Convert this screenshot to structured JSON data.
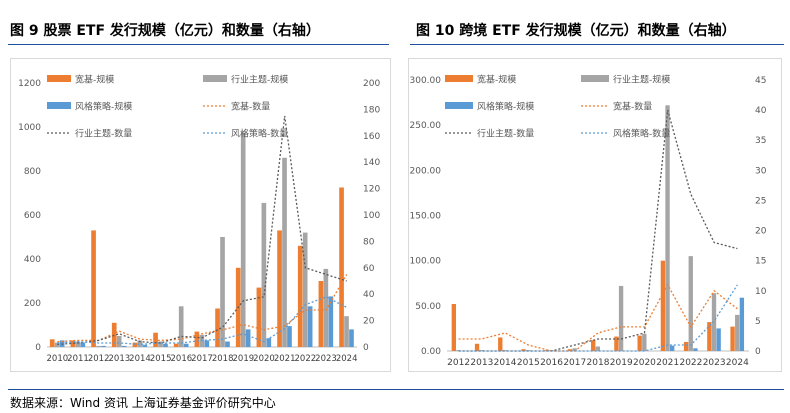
{
  "figures": {
    "left_title": "图 9  股票 ETF 发行规模（亿元）和数量（右轴）",
    "right_title": "图 10  跨境 ETF 发行规模（亿元）和数量（右轴）"
  },
  "source": "数据来源：Wind 资讯  上海证券基金评价研究中心",
  "colors": {
    "broad": "#ed7d31",
    "industry": "#a5a5a5",
    "strategy": "#5b9bd5",
    "industry_count_line": "#595959"
  },
  "chart_data": [
    {
      "type": "bar",
      "title": "图 9  股票 ETF 发行规模（亿元）和数量（右轴）",
      "categories": [
        "2010",
        "2011",
        "2012",
        "2013",
        "2014",
        "2015",
        "2016",
        "2017",
        "2018",
        "2019",
        "2020",
        "2021",
        "2022",
        "2023",
        "2024"
      ],
      "ylim": [
        0,
        1200
      ],
      "yticks": [
        "0",
        "200",
        "400",
        "600",
        "800",
        "1000",
        "1200"
      ],
      "y2lim": [
        0,
        200
      ],
      "y2ticks": [
        "0",
        "20",
        "40",
        "60",
        "80",
        "100",
        "120",
        "140",
        "160",
        "180",
        "200"
      ],
      "legend": [
        "宽基-规模",
        "行业主题-规模",
        "风格策略-规模",
        "宽基-数量",
        "行业主题-数量",
        "风格策略-数量"
      ],
      "bar_series": [
        {
          "name": "宽基-规模",
          "values": [
            35,
            30,
            530,
            110,
            20,
            65,
            15,
            70,
            175,
            360,
            270,
            530,
            460,
            300,
            725
          ]
        },
        {
          "name": "行业主题-规模",
          "values": [
            20,
            25,
            5,
            50,
            30,
            25,
            185,
            55,
            500,
            975,
            655,
            860,
            520,
            355,
            140
          ]
        },
        {
          "name": "风格策略-规模",
          "values": [
            30,
            20,
            5,
            5,
            10,
            15,
            15,
            30,
            25,
            80,
            40,
            95,
            185,
            230,
            80
          ]
        }
      ],
      "line_series": [
        {
          "name": "宽基-数量",
          "values": [
            4,
            5,
            5,
            12,
            6,
            5,
            6,
            10,
            13,
            17,
            13,
            16,
            28,
            28,
            55
          ]
        },
        {
          "name": "行业主题-数量",
          "values": [
            2,
            3,
            5,
            10,
            4,
            3,
            8,
            7,
            15,
            35,
            38,
            175,
            60,
            55,
            50
          ]
        },
        {
          "name": "风格策略-数量",
          "values": [
            3,
            4,
            3,
            3,
            2,
            3,
            3,
            5,
            6,
            10,
            4,
            14,
            32,
            38,
            30
          ]
        }
      ]
    },
    {
      "type": "bar",
      "title": "图 10  跨境 ETF 发行规模（亿元）和数量（右轴）",
      "categories": [
        "2012",
        "2013",
        "2014",
        "2015",
        "2016",
        "2017",
        "2018",
        "2019",
        "2020",
        "2021",
        "2022",
        "2023",
        "2024"
      ],
      "ylim": [
        0,
        300
      ],
      "yticks": [
        "0.00",
        "50.00",
        "100.00",
        "150.00",
        "200.00",
        "250.00",
        "300.00"
      ],
      "y2lim": [
        0,
        45
      ],
      "y2ticks": [
        "0",
        "5",
        "10",
        "15",
        "20",
        "25",
        "30",
        "35",
        "40",
        "45"
      ],
      "legend": [
        "宽基-规模",
        "行业主题-规模",
        "风格策略-规模",
        "宽基-数量",
        "行业主题-数量",
        "风格策略-数量"
      ],
      "bar_series": [
        {
          "name": "宽基-规模",
          "values": [
            52,
            8,
            15,
            2,
            1,
            2,
            12,
            16,
            17,
            100,
            10,
            32,
            27
          ]
        },
        {
          "name": "行业主题-规模",
          "values": [
            1,
            1,
            1,
            1,
            1,
            3,
            5,
            72,
            19,
            272,
            105,
            64,
            40
          ]
        },
        {
          "name": "风格策略-规模",
          "values": [
            0,
            0,
            0,
            0,
            0,
            0,
            0,
            0,
            0,
            6,
            3,
            25,
            59
          ]
        }
      ],
      "line_series": [
        {
          "name": "宽基-数量",
          "values": [
            2,
            2,
            3,
            1,
            0,
            0,
            3,
            4,
            4,
            11,
            4,
            10,
            7
          ]
        },
        {
          "name": "行业主题-数量",
          "values": [
            0,
            0,
            0,
            0,
            0,
            1,
            2,
            2,
            3,
            40,
            26,
            18,
            17
          ]
        },
        {
          "name": "风格策略-数量",
          "values": [
            0,
            0,
            0,
            0,
            0,
            0,
            0,
            0,
            0,
            1,
            1,
            5,
            11
          ]
        }
      ]
    }
  ]
}
